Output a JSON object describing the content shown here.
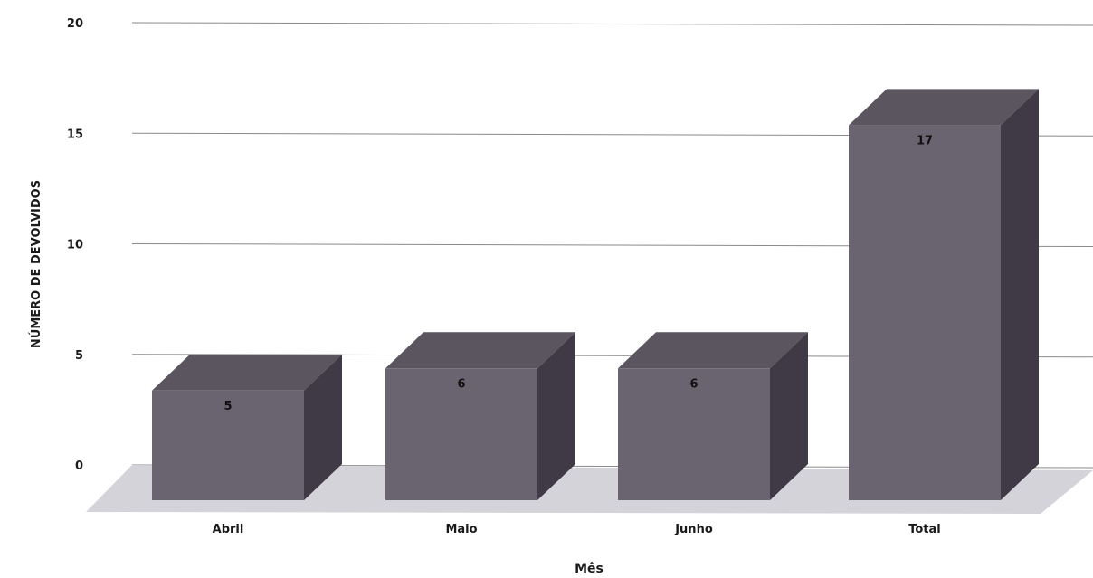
{
  "chart_data": {
    "type": "bar",
    "categories": [
      "Abril",
      "Maio",
      "Junho",
      "Total"
    ],
    "values": [
      5,
      6,
      6,
      17
    ],
    "data_labels": [
      "5",
      "6",
      "6",
      "17"
    ],
    "title": "",
    "xlabel": "Mês",
    "ylabel": "NÚMERO DE DEVOLVIDOS",
    "ylim": [
      0,
      20
    ],
    "yticks": [
      "0",
      "5",
      "10",
      "15",
      "20"
    ],
    "grid": true,
    "legend": "none",
    "style": "3d-column",
    "colors": {
      "bar_front": "#6a6470",
      "bar_top": "#5b5560",
      "bar_side": "#3f3a45",
      "floor": "#d4d3da",
      "gridline": "#8a8a8a",
      "axis_text": "#1a1a1a",
      "label_text": "#111111"
    }
  }
}
